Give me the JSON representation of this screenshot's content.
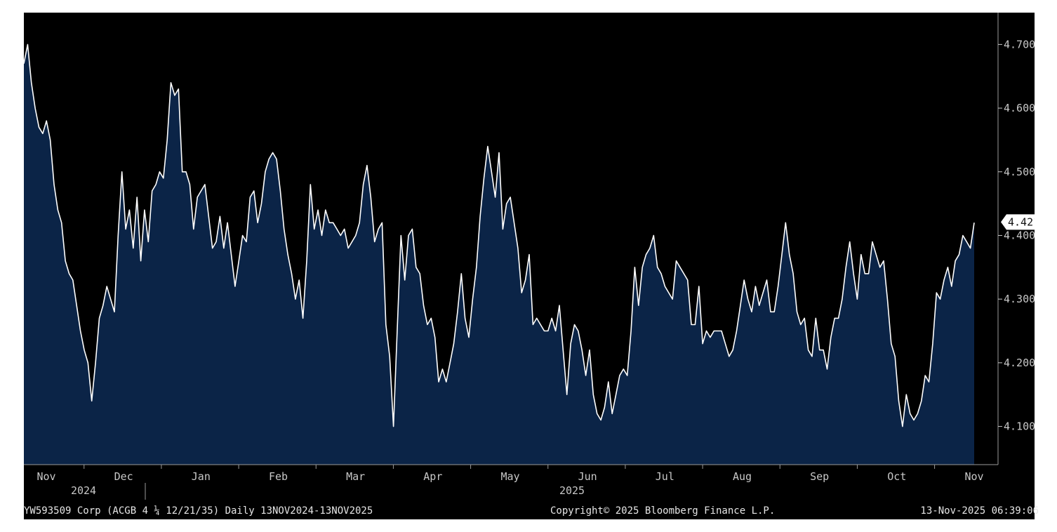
{
  "chart_data": {
    "type": "area",
    "ylim": [
      4.04,
      4.75
    ],
    "yticks": [
      "4.100",
      "4.200",
      "4.300",
      "4.400",
      "4.500",
      "4.600",
      "4.700"
    ],
    "x_month_labels": [
      "Nov",
      "Dec",
      "Jan",
      "Feb",
      "Mar",
      "Apr",
      "May",
      "Jun",
      "Jul",
      "Aug",
      "Sep",
      "Oct",
      "Nov"
    ],
    "x_year_labels": [
      "2024",
      "2025"
    ],
    "last_value": "4.421",
    "colors": {
      "line": "#ffffff",
      "fill": "#0b2447",
      "background": "#000000",
      "badge": "#ffffff"
    },
    "series": [
      {
        "values": [
          4.67,
          4.7,
          4.64,
          4.6,
          4.57,
          4.56,
          4.58,
          4.55,
          4.48,
          4.44,
          4.42,
          4.36,
          4.34,
          4.33,
          4.29,
          4.25,
          4.22,
          4.2,
          4.14,
          4.2,
          4.27,
          4.29,
          4.32,
          4.3,
          4.28,
          4.4,
          4.5,
          4.41,
          4.44,
          4.38,
          4.46,
          4.36,
          4.44,
          4.39,
          4.47,
          4.48,
          4.5,
          4.49,
          4.55,
          4.64,
          4.62,
          4.63,
          4.5,
          4.5,
          4.48,
          4.41,
          4.46,
          4.47,
          4.48,
          4.43,
          4.38,
          4.39,
          4.43,
          4.38,
          4.42,
          4.37,
          4.32,
          4.36,
          4.4,
          4.39,
          4.46,
          4.47,
          4.42,
          4.45,
          4.5,
          4.52,
          4.53,
          4.52,
          4.47,
          4.41,
          4.37,
          4.34,
          4.3,
          4.33,
          4.27,
          4.36,
          4.48,
          4.41,
          4.44,
          4.4,
          4.44,
          4.42,
          4.42,
          4.41,
          4.4,
          4.41,
          4.38,
          4.39,
          4.4,
          4.42,
          4.48,
          4.51,
          4.46,
          4.39,
          4.41,
          4.42,
          4.26,
          4.21,
          4.1,
          4.25,
          4.4,
          4.33,
          4.4,
          4.41,
          4.35,
          4.34,
          4.29,
          4.26,
          4.27,
          4.24,
          4.17,
          4.19,
          4.17,
          4.2,
          4.23,
          4.28,
          4.34,
          4.27,
          4.24,
          4.3,
          4.35,
          4.43,
          4.49,
          4.54,
          4.5,
          4.46,
          4.53,
          4.41,
          4.45,
          4.46,
          4.42,
          4.38,
          4.31,
          4.33,
          4.37,
          4.26,
          4.27,
          4.26,
          4.25,
          4.25,
          4.27,
          4.25,
          4.29,
          4.22,
          4.15,
          4.23,
          4.26,
          4.25,
          4.22,
          4.18,
          4.22,
          4.15,
          4.12,
          4.11,
          4.13,
          4.17,
          4.12,
          4.15,
          4.18,
          4.19,
          4.18,
          4.25,
          4.35,
          4.29,
          4.35,
          4.37,
          4.38,
          4.4,
          4.35,
          4.34,
          4.32,
          4.31,
          4.3,
          4.36,
          4.35,
          4.34,
          4.33,
          4.26,
          4.26,
          4.32,
          4.23,
          4.25,
          4.24,
          4.25,
          4.25,
          4.25,
          4.23,
          4.21,
          4.22,
          4.25,
          4.29,
          4.33,
          4.3,
          4.28,
          4.32,
          4.29,
          4.31,
          4.33,
          4.28,
          4.28,
          4.32,
          4.37,
          4.42,
          4.37,
          4.34,
          4.28,
          4.26,
          4.27,
          4.22,
          4.21,
          4.27,
          4.22,
          4.22,
          4.19,
          4.24,
          4.27,
          4.27,
          4.3,
          4.35,
          4.39,
          4.34,
          4.3,
          4.37,
          4.34,
          4.34,
          4.39,
          4.37,
          4.35,
          4.36,
          4.3,
          4.23,
          4.21,
          4.14,
          4.1,
          4.15,
          4.12,
          4.11,
          4.12,
          4.14,
          4.18,
          4.17,
          4.23,
          4.31,
          4.3,
          4.33,
          4.35,
          4.32,
          4.36,
          4.37,
          4.4,
          4.39,
          4.38,
          4.42
        ]
      }
    ]
  },
  "footer": {
    "left": "YW593509 Corp (ACGB 4 ¼ 12/21/35) Daily 13NOV2024-13NOV2025",
    "center": "Copyright© 2025 Bloomberg Finance L.P.",
    "right": "13-Nov-2025 06:39:06"
  }
}
